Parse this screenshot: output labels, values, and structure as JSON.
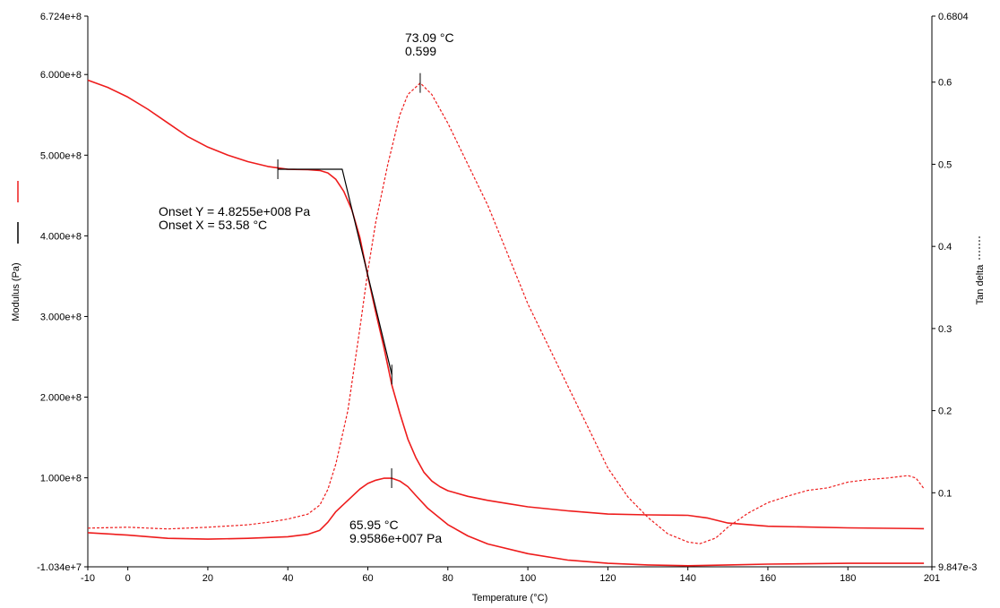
{
  "chart_data": {
    "type": "line",
    "xlabel": "Temperature (°C)",
    "ylabel_left": "Modulus (Pa)",
    "ylabel_right": "Tan delta",
    "xlim": [
      -10,
      201
    ],
    "ylim_left": [
      -10340000,
      672400000
    ],
    "ylim_right": [
      0.009847,
      0.6804
    ],
    "x_ticks": [
      "-10",
      "0",
      "20",
      "40",
      "60",
      "80",
      "100",
      "120",
      "140",
      "160",
      "180",
      "201"
    ],
    "x_tick_values": [
      -10,
      0,
      20,
      40,
      60,
      80,
      100,
      120,
      140,
      160,
      180,
      201
    ],
    "y_left_ticks": [
      "-1.034e+7",
      "1.000e+8",
      "2.000e+8",
      "3.000e+8",
      "4.000e+8",
      "5.000e+8",
      "6.000e+8",
      "6.724e+8"
    ],
    "y_left_tick_values": [
      -10340000,
      100000000,
      200000000,
      300000000,
      400000000,
      500000000,
      600000000,
      672400000
    ],
    "y_right_ticks": [
      "9.847e-3",
      "0.1",
      "0.2",
      "0.3",
      "0.4",
      "0.5",
      "0.6",
      "0.6804"
    ],
    "y_right_tick_values": [
      0.009847,
      0.1,
      0.2,
      0.3,
      0.4,
      0.5,
      0.6,
      0.6804
    ],
    "grid": false,
    "legend": "left",
    "colors": {
      "storage": "#ee1c1c",
      "onset": "#000000",
      "loss": "#ee1c1c",
      "tan": "#ee1c1c"
    },
    "series": [
      {
        "axis": "left",
        "style": "solid",
        "x": [
          -10,
          -5,
          0,
          5,
          10,
          15,
          20,
          25,
          30,
          35,
          40,
          45,
          48,
          50,
          52,
          54,
          56,
          58,
          60,
          62,
          64,
          66,
          68,
          70,
          72,
          74,
          76,
          78,
          80,
          85,
          90,
          95,
          100,
          110,
          120,
          130,
          140,
          145,
          150,
          160,
          180,
          199
        ],
        "values": [
          593000000,
          584000000,
          572000000,
          557000000,
          540000000,
          523000000,
          510000000,
          500000000,
          492000000,
          486000000,
          482500000,
          482000000,
          481000000,
          478000000,
          470000000,
          455000000,
          432000000,
          398000000,
          350000000,
          305000000,
          262000000,
          215000000,
          180000000,
          148000000,
          125000000,
          107000000,
          96000000,
          89000000,
          84000000,
          77000000,
          72000000,
          68000000,
          64000000,
          59000000,
          55000000,
          54000000,
          53500000,
          50000000,
          44000000,
          40000000,
          38000000,
          37000000
        ]
      },
      {
        "axis": "left",
        "style": "solid",
        "x": [
          -10,
          0,
          10,
          20,
          30,
          40,
          45,
          48,
          50,
          52,
          55,
          58,
          60,
          62,
          64,
          65.95,
          68,
          70,
          72,
          75,
          80,
          85,
          90,
          100,
          110,
          120,
          130,
          140,
          150,
          160,
          180,
          199
        ],
        "values": [
          32000000,
          29000000,
          25000000,
          24000000,
          25000000,
          27000000,
          30000000,
          35000000,
          45000000,
          58000000,
          72000000,
          86000000,
          93000000,
          97000000,
          99500000,
          99586000,
          96000000,
          89000000,
          78000000,
          62000000,
          42000000,
          28000000,
          18000000,
          6000000,
          -2000000,
          -6000000,
          -8000000,
          -9000000,
          -8000000,
          -7000000,
          -6000000,
          -6000000
        ]
      },
      {
        "axis": "right",
        "style": "dashed",
        "x": [
          -10,
          0,
          10,
          20,
          30,
          35,
          40,
          45,
          48,
          50,
          52,
          55,
          58,
          60,
          62,
          65,
          68,
          70,
          73.09,
          76,
          80,
          85,
          90,
          95,
          100,
          105,
          110,
          115,
          120,
          125,
          130,
          135,
          140,
          143,
          147,
          150,
          155,
          160,
          165,
          170,
          175,
          180,
          185,
          190,
          195,
          197,
          199
        ],
        "values": [
          0.057,
          0.058,
          0.056,
          0.058,
          0.061,
          0.064,
          0.068,
          0.074,
          0.085,
          0.104,
          0.135,
          0.2,
          0.3,
          0.37,
          0.43,
          0.5,
          0.56,
          0.585,
          0.599,
          0.585,
          0.55,
          0.5,
          0.45,
          0.39,
          0.33,
          0.28,
          0.23,
          0.18,
          0.13,
          0.095,
          0.07,
          0.05,
          0.04,
          0.038,
          0.045,
          0.058,
          0.075,
          0.088,
          0.096,
          0.103,
          0.106,
          0.113,
          0.116,
          0.118,
          0.121,
          0.118,
          0.105
        ]
      },
      {
        "axis": "left",
        "style": "onset-tangent",
        "x": [
          37.5,
          53.58,
          66
        ],
        "values": [
          482550000,
          482550000,
          228000000
        ]
      }
    ],
    "annotations": {
      "tan_peak_temp": "73.09 °C",
      "tan_peak_value": "0.599",
      "onset_y": "Onset Y = 4.8255e+008 Pa",
      "onset_x": "Onset X = 53.58 °C",
      "loss_peak_temp": "65.95 °C",
      "loss_peak_value": "9.9586e+007 Pa"
    }
  }
}
